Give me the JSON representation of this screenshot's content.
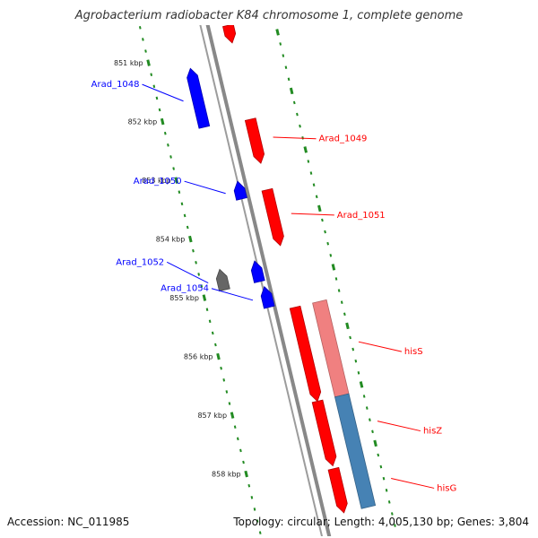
{
  "title": "Agrobacterium radiobacter K84 chromosome 1, complete genome",
  "footer": {
    "accession": "Accession: NC_011985",
    "summary": "Topology: circular; Length: 4,005,130 bp; Genes: 3,804"
  },
  "colors": {
    "forward_gene": "#ff0000",
    "reverse_gene": "#0000ff",
    "other_feature": "#666666",
    "cds_light": "#f08080",
    "cds_steel": "#4682b4",
    "tick": "#228b22",
    "backbone": "#888888"
  },
  "scale": {
    "ticks": [
      {
        "kbp": 851,
        "label": "851 kbp"
      },
      {
        "kbp": 852,
        "label": "852 kbp"
      },
      {
        "kbp": 853,
        "label": "853 kbp"
      },
      {
        "kbp": 854,
        "label": "854 kbp"
      },
      {
        "kbp": 855,
        "label": "855 kbp"
      },
      {
        "kbp": 856,
        "label": "856 kbp"
      },
      {
        "kbp": 857,
        "label": "857 kbp"
      },
      {
        "kbp": 858,
        "label": "858 kbp"
      }
    ]
  },
  "genes": [
    {
      "name": "",
      "strand": "+",
      "track": "gene",
      "start_kbp": 850.7,
      "end_kbp": 851.0
    },
    {
      "name": "Arad_1048",
      "strand": "-",
      "track": "gene",
      "start_kbp": 851.25,
      "end_kbp": 852.25
    },
    {
      "name": "Arad_1049",
      "strand": "+",
      "track": "gene",
      "start_kbp": 852.3,
      "end_kbp": 853.05
    },
    {
      "name": "Arad_1050",
      "strand": "-",
      "track": "gene",
      "start_kbp": 853.25,
      "end_kbp": 853.55
    },
    {
      "name": "Arad_1051",
      "strand": "+",
      "track": "gene",
      "start_kbp": 853.5,
      "end_kbp": 854.45
    },
    {
      "name": "Arad_1052",
      "strand": "-",
      "track": "other",
      "start_kbp": 854.6,
      "end_kbp": 854.95
    },
    {
      "name": "",
      "strand": "-",
      "track": "gene",
      "start_kbp": 854.6,
      "end_kbp": 854.95
    },
    {
      "name": "Arad_1054",
      "strand": "-",
      "track": "gene",
      "start_kbp": 855.05,
      "end_kbp": 855.4
    },
    {
      "name": "hisS",
      "strand": "+",
      "track": "gene",
      "start_kbp": 855.5,
      "end_kbp": 857.1
    },
    {
      "name": "hisZ",
      "strand": "+",
      "track": "gene",
      "start_kbp": 857.1,
      "end_kbp": 858.2
    },
    {
      "name": "hisG",
      "strand": "+",
      "track": "gene",
      "start_kbp": 858.25,
      "end_kbp": 859.0
    }
  ],
  "cds": [
    {
      "color_key": "cds_light",
      "start_kbp": 855.5,
      "end_kbp": 857.1
    },
    {
      "color_key": "cds_steel",
      "start_kbp": 857.1,
      "end_kbp": 859.0
    }
  ]
}
